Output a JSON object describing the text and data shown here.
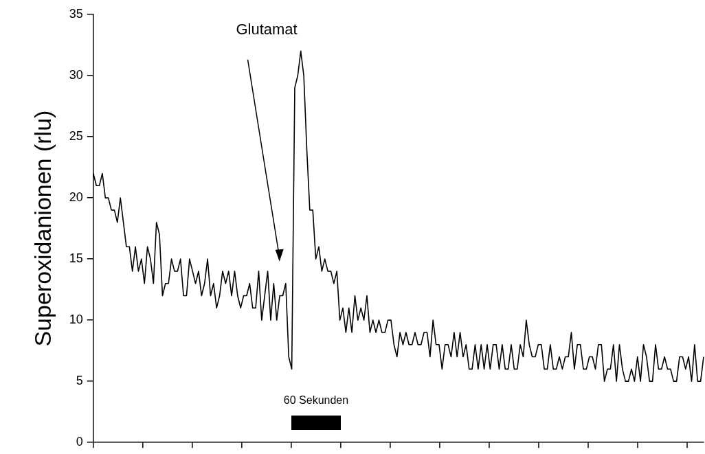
{
  "chart_data": {
    "type": "line",
    "ylabel": "Superoxidanionen (rlu)",
    "annotations": [
      "Glutamat",
      "60 Sekunden"
    ],
    "categories": [
      null,
      null,
      null,
      null,
      null,
      null,
      null,
      null,
      null,
      null,
      null,
      null,
      null,
      null,
      null,
      null,
      null,
      null,
      null,
      null,
      null,
      null,
      null,
      null,
      null,
      null,
      null,
      null,
      null,
      null,
      null,
      null,
      null,
      null,
      null,
      null,
      null,
      null,
      null,
      null,
      null,
      null,
      null,
      null,
      null,
      null,
      null,
      null,
      null,
      null,
      null,
      null,
      null,
      null,
      null,
      null,
      null,
      null,
      null,
      null,
      null,
      null,
      null,
      null,
      null,
      null,
      null,
      null,
      null,
      null,
      null,
      null,
      null,
      null,
      null,
      null,
      null,
      null,
      null,
      null,
      null,
      null,
      null,
      null,
      null,
      null,
      null,
      null,
      null,
      null,
      null,
      null,
      null,
      null,
      null,
      null,
      null,
      null,
      null,
      null,
      null,
      null,
      null,
      null,
      null,
      null,
      null,
      null,
      null,
      null,
      null,
      null,
      null,
      null,
      null,
      null,
      null,
      null,
      null,
      null,
      null,
      null,
      null,
      null,
      null,
      null,
      null,
      null,
      null,
      null,
      null,
      null,
      null,
      null,
      null,
      null,
      null,
      null,
      null,
      null,
      null,
      null,
      null,
      null,
      null,
      null,
      null,
      null,
      null,
      null,
      null,
      null,
      null,
      null,
      null,
      null,
      null,
      null,
      null,
      null,
      null,
      null,
      null,
      null,
      null,
      null,
      null,
      null,
      null,
      null,
      null,
      null,
      null,
      null,
      null,
      null,
      null,
      null,
      null,
      null,
      null,
      null,
      null,
      null,
      null,
      null,
      null,
      null,
      null,
      null,
      null,
      null,
      null,
      null,
      null,
      null,
      null,
      null,
      null,
      null,
      null,
      null,
      null,
      null
    ],
    "ylim": [
      0,
      35
    ],
    "yticks": [
      0,
      5,
      10,
      15,
      20,
      25,
      30,
      35
    ],
    "grid": false,
    "legend": false,
    "marker": "none",
    "line_style": "solid",
    "series": [
      {
        "color": "#000000",
        "values": [
          22,
          21,
          21,
          22,
          20,
          20,
          19,
          19,
          18,
          20,
          18,
          16,
          16,
          14,
          16,
          14,
          15,
          13,
          16,
          15,
          13,
          18,
          17,
          12,
          13,
          13,
          15,
          14,
          14,
          15,
          12,
          12,
          15,
          14,
          13,
          14,
          12,
          13,
          15,
          12,
          13,
          11,
          12,
          14,
          13,
          14,
          12,
          14,
          12,
          11,
          12,
          12,
          13,
          11,
          11,
          14,
          10,
          12,
          14,
          10,
          13,
          10,
          12,
          12,
          13,
          7,
          6,
          29,
          30,
          32,
          30,
          24,
          19,
          19,
          15,
          16,
          14,
          15,
          14,
          14,
          13,
          14,
          10,
          11,
          9,
          11,
          9,
          12,
          10,
          11,
          10,
          12,
          9,
          10,
          9,
          10,
          9,
          9,
          10,
          10,
          8,
          7,
          9,
          8,
          9,
          8,
          8,
          9,
          8,
          8,
          9,
          9,
          7,
          10,
          8,
          8,
          6,
          8,
          8,
          7,
          9,
          7,
          9,
          7,
          8,
          6,
          6,
          8,
          6,
          8,
          6,
          8,
          6,
          8,
          8,
          6,
          8,
          6,
          6,
          8,
          6,
          6,
          8,
          7,
          10,
          8,
          7,
          7,
          8,
          8,
          6,
          6,
          8,
          6,
          6,
          7,
          6,
          7,
          7,
          9,
          6,
          8,
          8,
          6,
          6,
          7,
          7,
          6,
          8,
          8,
          5,
          6,
          6,
          8,
          5,
          8,
          6,
          5,
          5,
          6,
          5,
          7,
          5,
          8,
          7,
          5,
          5,
          8,
          6,
          6,
          7,
          6,
          6,
          5,
          5,
          7,
          7,
          6,
          7,
          5,
          8,
          5,
          5,
          7
        ]
      }
    ]
  }
}
